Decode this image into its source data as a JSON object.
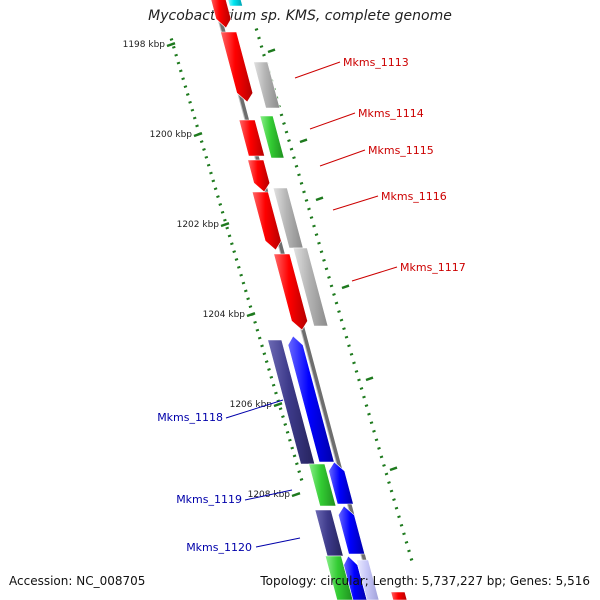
{
  "title": "Mycobacterium sp. KMS, complete genome",
  "footer": {
    "accession": "Accession: NC_008705",
    "summary": "Topology: circular; Length: 5,737,227 bp; Genes: 5,516"
  },
  "colors": {
    "forward_gene": "#ff0000",
    "other_gene": "#b4b4b4",
    "rna_gene": "#33cc33",
    "reverse_gene_dark": "#3d3a8a",
    "reverse_gene": "#0000ff",
    "label_red": "#cc0000",
    "label_blue": "#0000aa",
    "tick": "#1e7a1e",
    "backbone": "#7a7a7a"
  },
  "ruler": {
    "unit": "kbp",
    "major_labels": [
      "1198 kbp",
      "1200 kbp",
      "1202 kbp",
      "1204 kbp",
      "1206 kbp",
      "1208 kbp"
    ]
  },
  "gene_labels": [
    {
      "text": "Mkms_1113",
      "strand": "right"
    },
    {
      "text": "Mkms_1114",
      "strand": "right"
    },
    {
      "text": "Mkms_1115",
      "strand": "right"
    },
    {
      "text": "Mkms_1116",
      "strand": "right"
    },
    {
      "text": "Mkms_1117",
      "strand": "right"
    },
    {
      "text": "Mkms_1118",
      "strand": "left"
    },
    {
      "text": "Mkms_1119",
      "strand": "left"
    },
    {
      "text": "Mkms_1120",
      "strand": "left"
    }
  ]
}
